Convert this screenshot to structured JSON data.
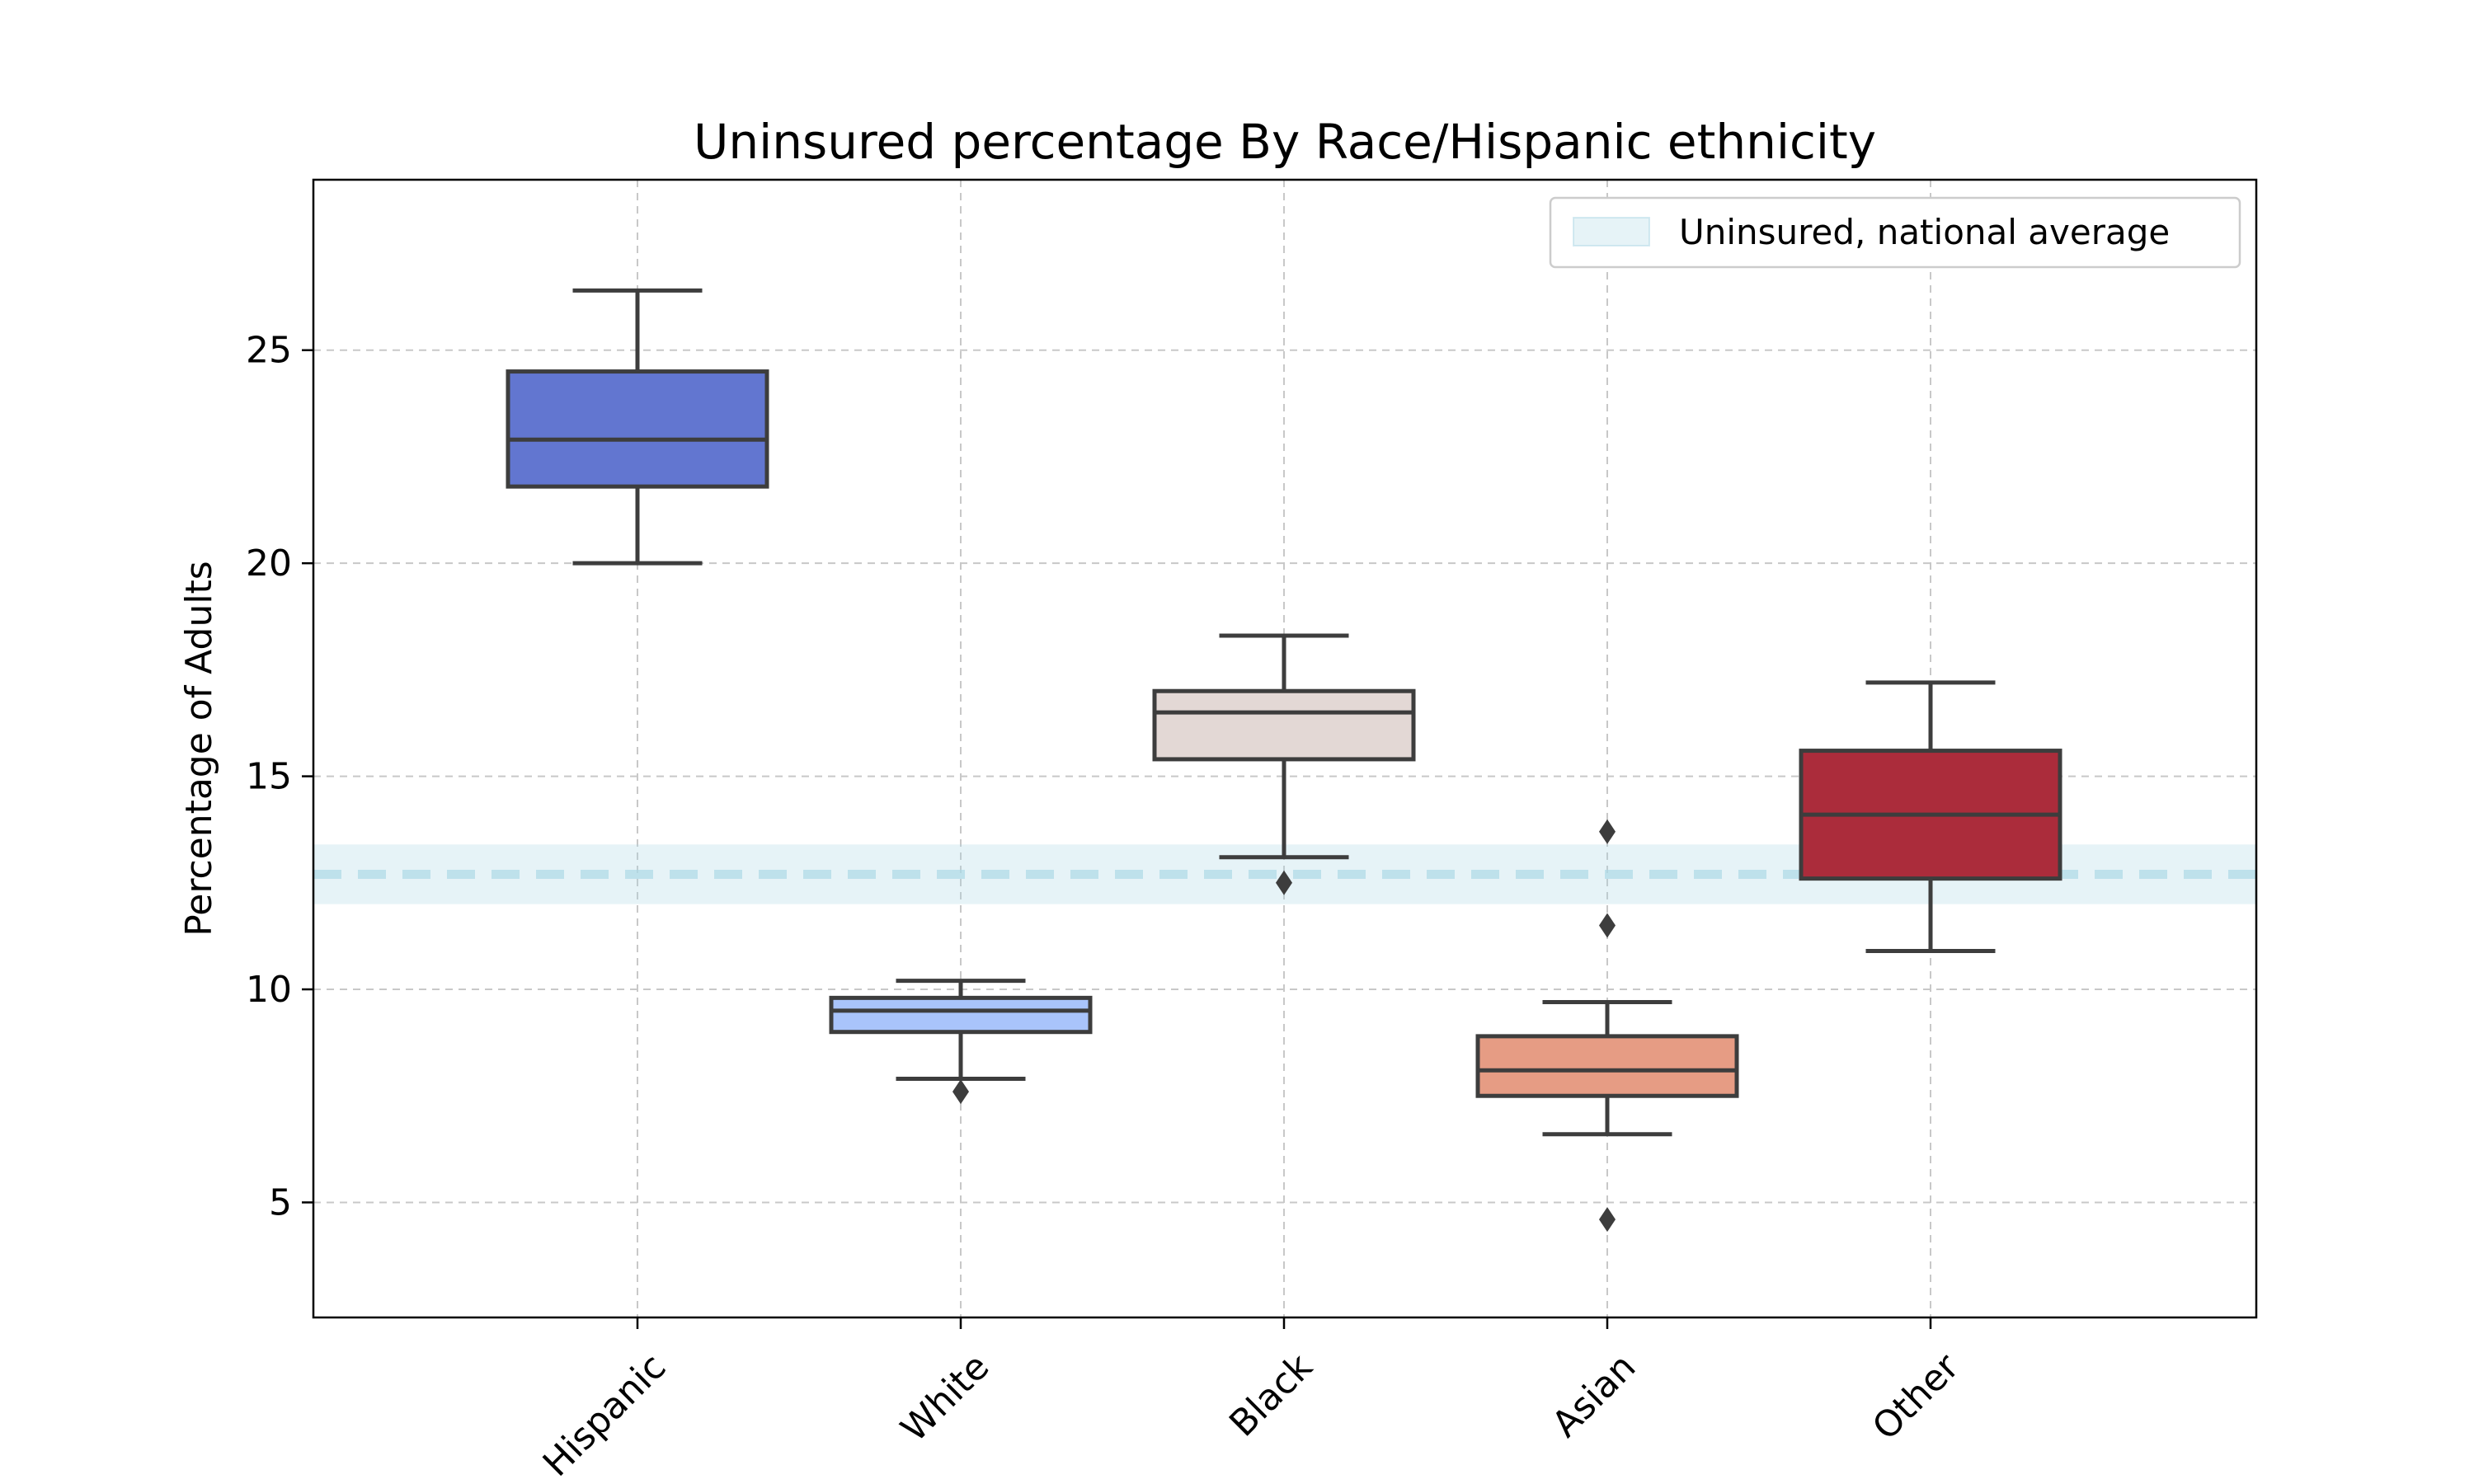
{
  "chart_data": {
    "type": "box",
    "title": "Uninsured percentage By Race/Hispanic ethnicity",
    "xlabel": "",
    "ylabel": "Percentage of Adults",
    "ylim": [
      2.3,
      29
    ],
    "yticks": [
      5,
      10,
      15,
      20,
      25
    ],
    "grid": true,
    "legend_position": "upper-right",
    "categories": [
      "Hispanic",
      "White",
      "Black",
      "Asian",
      "Other"
    ],
    "boxes": [
      {
        "category": "Hispanic",
        "whisker_low": 20.0,
        "q1": 21.8,
        "median": 22.9,
        "q3": 24.5,
        "whisker_high": 26.4,
        "outliers": [],
        "color": "#6276d0"
      },
      {
        "category": "White",
        "whisker_low": 7.9,
        "q1": 9.0,
        "median": 9.5,
        "q3": 9.8,
        "whisker_high": 10.2,
        "outliers": [
          7.6
        ],
        "color": "#a9c4fb"
      },
      {
        "category": "Black",
        "whisker_low": 13.1,
        "q1": 15.4,
        "median": 16.5,
        "q3": 17.0,
        "whisker_high": 18.3,
        "outliers": [
          12.5
        ],
        "color": "#e3d8d5"
      },
      {
        "category": "Asian",
        "whisker_low": 6.6,
        "q1": 7.5,
        "median": 8.1,
        "q3": 8.9,
        "whisker_high": 9.7,
        "outliers": [
          13.7,
          11.5,
          4.6
        ],
        "color": "#e69c84"
      },
      {
        "category": "Other",
        "whisker_low": 10.9,
        "q1": 12.6,
        "median": 14.1,
        "q3": 15.6,
        "whisker_high": 17.2,
        "outliers": [],
        "color": "#ab2c3b"
      }
    ],
    "reference": {
      "label": "Uninsured, national average",
      "value": 12.7,
      "band": [
        12.0,
        13.4
      ],
      "band_color": "#add8e6",
      "line_color": "#add8e6"
    }
  }
}
